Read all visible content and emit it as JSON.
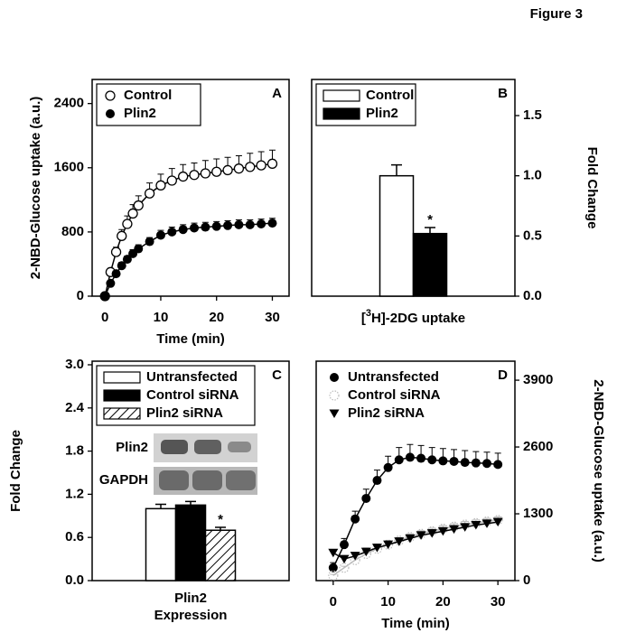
{
  "figure_title": "Figure 3",
  "chart_data": [
    {
      "type": "line",
      "panel": "A",
      "y_axis_side": "left",
      "legend": "upper left",
      "legend_frame": true,
      "xlabel": "Time (min)",
      "ylabel": "2-NBD-Glucose uptake (a.u.)",
      "xlim": [
        -2.3,
        33
      ],
      "xticks": [
        0,
        10,
        20,
        30
      ],
      "ylim": [
        0,
        2700
      ],
      "yticks": [
        0,
        800,
        1600,
        2400
      ],
      "x": [
        0,
        1,
        2,
        3,
        4,
        5,
        6,
        8,
        10,
        12,
        14,
        16,
        18,
        20,
        22,
        24,
        26,
        28,
        30
      ],
      "series": [
        {
          "name": "Control",
          "color": "#000000",
          "marker": "open-circle",
          "values": [
            0,
            300,
            550,
            750,
            900,
            1030,
            1130,
            1280,
            1380,
            1440,
            1490,
            1510,
            1530,
            1550,
            1570,
            1590,
            1610,
            1630,
            1650
          ],
          "errors": [
            0,
            40,
            60,
            80,
            100,
            110,
            120,
            130,
            140,
            150,
            150,
            150,
            160,
            160,
            160,
            160,
            170,
            170,
            170
          ]
        },
        {
          "name": "Plin2",
          "color": "#000000",
          "marker": "filled-circle",
          "values": [
            0,
            160,
            280,
            380,
            460,
            530,
            590,
            680,
            760,
            800,
            830,
            850,
            860,
            870,
            880,
            890,
            890,
            900,
            910
          ],
          "errors": [
            0,
            20,
            30,
            40,
            40,
            50,
            50,
            50,
            60,
            60,
            60,
            60,
            60,
            60,
            60,
            60,
            60,
            60,
            60
          ]
        }
      ]
    },
    {
      "type": "bar",
      "panel": "B",
      "y_axis_side": "right",
      "legend": "upper left",
      "legend_frame": true,
      "xlabel_parts": [
        "[",
        "3",
        "H]-2DG uptake"
      ],
      "ylabel": "Fold Change",
      "ylim": [
        0,
        1.8
      ],
      "yticks": [
        {
          "value": 0,
          "label": "0.0"
        },
        0.5,
        {
          "value": 1,
          "label": "1.0"
        },
        1.5
      ],
      "series": [
        {
          "name": "Control",
          "color": "#ffffff",
          "values": [
            1.0
          ],
          "errors": [
            0.09
          ]
        },
        {
          "name": "Plin2",
          "color": "#000000",
          "values": [
            0.52
          ],
          "errors": [
            0.05
          ]
        }
      ],
      "annotations": [
        {
          "text": "*",
          "series": 1
        }
      ]
    },
    {
      "type": "bar",
      "panel": "C",
      "y_axis_side": "left",
      "legend": "upper left",
      "legend_frame": true,
      "xlabel_lines": [
        "Plin2",
        "Expression"
      ],
      "ylabel": "Fold Change",
      "ylim": [
        0,
        3.05
      ],
      "yticks": [
        {
          "value": 0,
          "label": "0.0"
        },
        0.6,
        1.2,
        1.8,
        2.4,
        {
          "value": 3,
          "label": "3.0"
        }
      ],
      "blot_labels": [
        "Plin2",
        "GAPDH"
      ],
      "series": [
        {
          "name": "Untransfected",
          "color": "#ffffff",
          "values": [
            1.0
          ],
          "errors": [
            0.06
          ]
        },
        {
          "name": "Control siRNA",
          "color": "#000000",
          "values": [
            1.05
          ],
          "errors": [
            0.05
          ]
        },
        {
          "name": "Plin2 siRNA",
          "color": "#ffffff",
          "fill_pattern": "diagonal-hatch",
          "values": [
            0.7
          ],
          "errors": [
            0.04
          ]
        }
      ],
      "annotations": [
        {
          "text": "*",
          "series": 2
        }
      ]
    },
    {
      "type": "line",
      "panel": "D",
      "y_axis_side": "right",
      "legend": "upper left",
      "legend_frame": false,
      "xlabel": "Time (min)",
      "ylabel": "2-NBD-Glucose uptake (a.u.)",
      "xlim": [
        -3.1,
        33.1
      ],
      "xticks": [
        0,
        10,
        20,
        30
      ],
      "ylim": [
        0,
        4270
      ],
      "yticks": [
        0,
        1300,
        2600,
        3900
      ],
      "x": [
        0,
        2,
        4,
        6,
        8,
        10,
        12,
        14,
        16,
        18,
        20,
        22,
        24,
        26,
        28,
        30
      ],
      "series": [
        {
          "name": "Untransfected",
          "color": "#000000",
          "marker": "filled-circle",
          "values": [
            250,
            700,
            1200,
            1600,
            1950,
            2200,
            2350,
            2400,
            2380,
            2350,
            2330,
            2320,
            2300,
            2290,
            2280,
            2260
          ],
          "errors": [
            100,
            120,
            150,
            180,
            200,
            220,
            240,
            250,
            250,
            240,
            240,
            230,
            230,
            220,
            220,
            220
          ]
        },
        {
          "name": "Control siRNA",
          "color": "#bbbbbb",
          "marker": "dotted-circle",
          "values": [
            100,
            250,
            400,
            520,
            620,
            700,
            780,
            850,
            910,
            960,
            1010,
            1050,
            1090,
            1120,
            1150,
            1180
          ],
          "errors": [
            20,
            30,
            40,
            50,
            50,
            50,
            60,
            60,
            60,
            60,
            60,
            60,
            60,
            60,
            60,
            60
          ]
        },
        {
          "name": "Plin2 siRNA",
          "color": "#000000",
          "marker": "filled-triangle-down",
          "values": [
            540,
            420,
            480,
            560,
            640,
            700,
            760,
            820,
            880,
            920,
            960,
            1000,
            1040,
            1080,
            1110,
            1140
          ],
          "errors": [
            60,
            60,
            70,
            70,
            70,
            70,
            70,
            70,
            70,
            70,
            70,
            70,
            70,
            70,
            70,
            70
          ]
        }
      ]
    }
  ]
}
